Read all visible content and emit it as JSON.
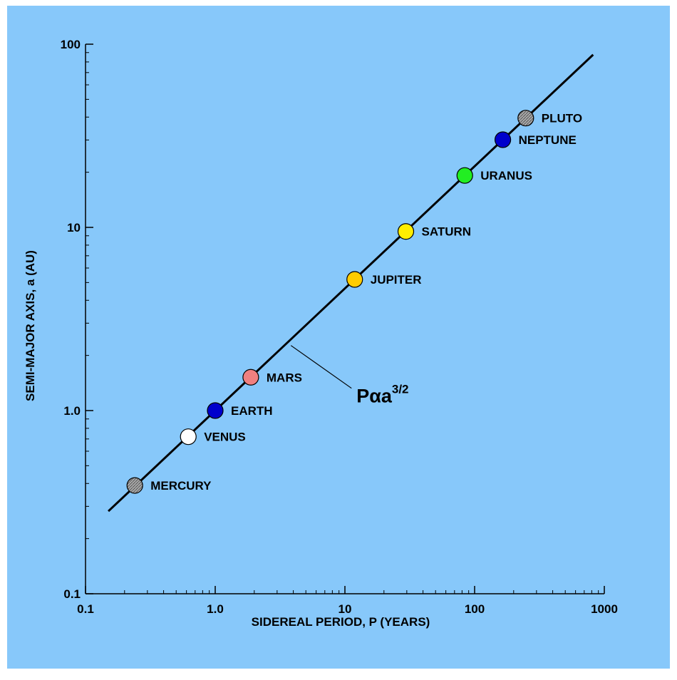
{
  "chart_data": {
    "type": "scatter",
    "xscale": "log",
    "yscale": "log",
    "xlim": [
      0.1,
      1000
    ],
    "ylim": [
      0.1,
      100
    ],
    "grid": false,
    "xlabel": "SIDEREAL PERIOD, P (YEARS)",
    "ylabel": "SEMI-MAJOR AXIS, a (AU)",
    "x_ticks": [
      {
        "value": 0.1,
        "label": "0.1"
      },
      {
        "value": 1,
        "label": "1.0"
      },
      {
        "value": 10,
        "label": "10"
      },
      {
        "value": 100,
        "label": "100"
      },
      {
        "value": 1000,
        "label": "1000"
      }
    ],
    "y_ticks": [
      {
        "value": 0.1,
        "label": "0.1"
      },
      {
        "value": 1,
        "label": "1.0"
      },
      {
        "value": 10,
        "label": "10"
      },
      {
        "value": 100,
        "label": "100"
      }
    ],
    "points": [
      {
        "label": "MERCURY",
        "x": 0.24,
        "y": 0.39,
        "color": "#999999"
      },
      {
        "label": "VENUS",
        "x": 0.62,
        "y": 0.72,
        "color": "#ffffff"
      },
      {
        "label": "EARTH",
        "x": 1.0,
        "y": 1.0,
        "color": "#0000cc"
      },
      {
        "label": "MARS",
        "x": 1.88,
        "y": 1.52,
        "color": "#f08080"
      },
      {
        "label": "JUPITER",
        "x": 11.9,
        "y": 5.2,
        "color": "#ffcc00"
      },
      {
        "label": "SATURN",
        "x": 29.5,
        "y": 9.5,
        "color": "#ffee00"
      },
      {
        "label": "URANUS",
        "x": 84,
        "y": 19.2,
        "color": "#22ee22"
      },
      {
        "label": "NEPTUNE",
        "x": 165,
        "y": 30.1,
        "color": "#0000cc"
      },
      {
        "label": "PLUTO",
        "x": 248,
        "y": 39.5,
        "color": "#999999"
      }
    ],
    "fit_line": {
      "x_range": [
        0.15,
        820
      ],
      "exponent": 0.6667
    },
    "annotation": {
      "base": "Pαa",
      "superscript": "3/2"
    }
  }
}
